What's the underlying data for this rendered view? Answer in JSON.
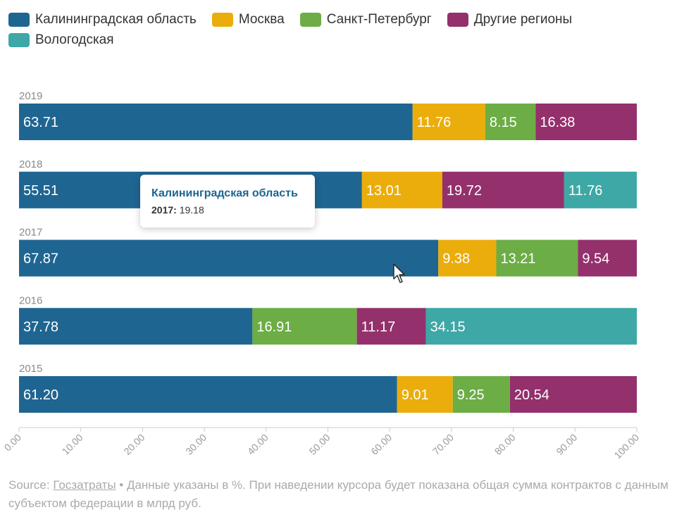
{
  "legend": [
    {
      "label": "Калининградская область",
      "color": "#1f6591"
    },
    {
      "label": "Москва",
      "color": "#ebad0b"
    },
    {
      "label": "Санкт-Петербург",
      "color": "#6cad45"
    },
    {
      "label": "Другие регионы",
      "color": "#94306c"
    },
    {
      "label": "Вологодская",
      "color": "#3da8a6"
    }
  ],
  "chart_data": {
    "type": "bar",
    "orientation": "horizontal",
    "stacked": true,
    "xlim": [
      0,
      100
    ],
    "x_ticks": [
      "0.00",
      "10.00",
      "20.00",
      "30.00",
      "40.00",
      "50.00",
      "60.00",
      "70.00",
      "80.00",
      "90.00",
      "100.00"
    ],
    "categories": [
      "2019",
      "2018",
      "2017",
      "2016",
      "2015"
    ],
    "rows": [
      {
        "year": "2019",
        "segments": [
          {
            "series": "Калининградская область",
            "value": 63.71,
            "label": "63.71"
          },
          {
            "series": "Москва",
            "value": 11.76,
            "label": "11.76"
          },
          {
            "series": "Санкт-Петербург",
            "value": 8.15,
            "label": "8.15"
          },
          {
            "series": "Другие регионы",
            "value": 16.38,
            "label": "16.38"
          }
        ]
      },
      {
        "year": "2018",
        "segments": [
          {
            "series": "Калининградская область",
            "value": 55.51,
            "label": "55.51"
          },
          {
            "series": "Москва",
            "value": 13.01,
            "label": "13.01"
          },
          {
            "series": "Другие регионы",
            "value": 19.72,
            "label": "19.72"
          },
          {
            "series": "Вологодская",
            "value": 11.76,
            "label": "11.76"
          }
        ]
      },
      {
        "year": "2017",
        "segments": [
          {
            "series": "Калининградская область",
            "value": 67.87,
            "label": "67.87"
          },
          {
            "series": "Москва",
            "value": 9.38,
            "label": "9.38"
          },
          {
            "series": "Санкт-Петербург",
            "value": 13.21,
            "label": "13.21"
          },
          {
            "series": "Другие регионы",
            "value": 9.54,
            "label": "9.54"
          }
        ]
      },
      {
        "year": "2016",
        "segments": [
          {
            "series": "Калининградская область",
            "value": 37.78,
            "label": "37.78"
          },
          {
            "series": "Санкт-Петербург",
            "value": 16.91,
            "label": "16.91"
          },
          {
            "series": "Другие регионы",
            "value": 11.17,
            "label": "11.17"
          },
          {
            "series": "Вологодская",
            "value": 34.15,
            "label": "34.15"
          }
        ]
      },
      {
        "year": "2015",
        "segments": [
          {
            "series": "Калининградская область",
            "value": 61.2,
            "label": "61.20"
          },
          {
            "series": "Москва",
            "value": 9.01,
            "label": "9.01"
          },
          {
            "series": "Санкт-Петербург",
            "value": 9.25,
            "label": "9.25"
          },
          {
            "series": "Другие регионы",
            "value": 20.54,
            "label": "20.54"
          }
        ]
      }
    ]
  },
  "tooltip": {
    "title": "Калининградская область",
    "year": "2017:",
    "value": "19.18"
  },
  "footer": {
    "source_prefix": "Source: ",
    "source_link": "Госзатраты",
    "note": " • Данные указаны в %. При наведении курсора будет показана общая сумма контрактов с данным субъектом федерации в млрд руб."
  }
}
